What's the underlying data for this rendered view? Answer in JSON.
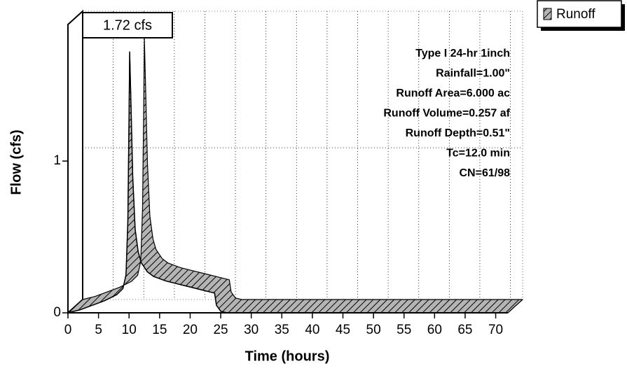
{
  "chart_data": {
    "type": "area",
    "xlabel": "Time (hours)",
    "ylabel": "Flow (cfs)",
    "x": [
      0,
      2,
      4,
      6,
      8,
      9,
      9.5,
      9.8,
      10,
      10.1,
      10.3,
      10.6,
      11,
      11.5,
      12,
      13,
      14,
      16,
      18,
      20,
      22,
      24,
      24.3,
      25,
      26,
      40,
      60,
      72
    ],
    "series": [
      {
        "name": "Runoff",
        "color": "#b4b4b4",
        "values": [
          0,
          0.02,
          0.05,
          0.08,
          0.12,
          0.16,
          0.25,
          0.6,
          1.3,
          1.72,
          1.4,
          0.9,
          0.55,
          0.4,
          0.33,
          0.27,
          0.24,
          0.21,
          0.19,
          0.17,
          0.15,
          0.13,
          0.05,
          0.01,
          0,
          0,
          0,
          0
        ]
      }
    ],
    "xlim": [
      0,
      72
    ],
    "ylim": [
      0,
      1.9
    ],
    "xticks": [
      0,
      5,
      10,
      15,
      20,
      25,
      30,
      35,
      40,
      45,
      50,
      55,
      60,
      65,
      70
    ],
    "yticks": [
      0,
      1
    ],
    "grid": true,
    "legend": "top-right",
    "annotations": [
      "1.72 cfs"
    ],
    "info_lines": [
      "Type I 24-hr 1inch",
      "Rainfall=1.00\"",
      "Runoff Area=6.000 ac",
      "Runoff Volume=0.257 af",
      "Runoff Depth=0.51\"",
      "Tc=12.0 min",
      "CN=61/98"
    ]
  }
}
